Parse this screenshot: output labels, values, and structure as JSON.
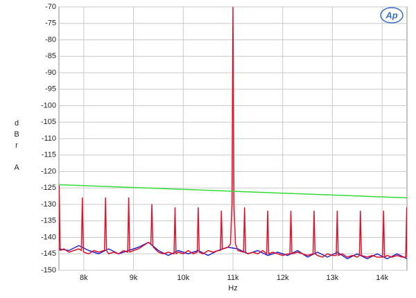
{
  "chart_data": {
    "type": "line",
    "logo": "Ap",
    "ylabel_lines": [
      "d",
      "B",
      "r",
      "A"
    ],
    "xlabel": "Hz",
    "xlim": [
      7500,
      14500
    ],
    "xticks": [
      {
        "value": 8000,
        "label": "8k"
      },
      {
        "value": 9000,
        "label": "9k"
      },
      {
        "value": 10000,
        "label": "10k"
      },
      {
        "value": 11000,
        "label": "11k"
      },
      {
        "value": 12000,
        "label": "12k"
      },
      {
        "value": 13000,
        "label": "13k"
      },
      {
        "value": 14000,
        "label": "14k"
      }
    ],
    "ylim": [
      -150,
      -70
    ],
    "yticks": [
      -70,
      -75,
      -80,
      -85,
      -90,
      -95,
      -100,
      -105,
      -110,
      -115,
      -120,
      -125,
      -130,
      -135,
      -140,
      -145,
      -150
    ],
    "grid": true,
    "series": [
      {
        "name": "Blue trace",
        "color": "#2222cc",
        "x": [
          7500,
          7700,
          7900,
          8100,
          8300,
          8500,
          8700,
          8900,
          9100,
          9300,
          9500,
          9700,
          9900,
          10100,
          10300,
          10500,
          10700,
          10900,
          11100,
          11300,
          11500,
          11700,
          11900,
          12100,
          12300,
          12500,
          12700,
          12900,
          13100,
          13300,
          13500,
          13700,
          13900,
          14100,
          14300,
          14500
        ],
        "values": [
          -143.5,
          -144,
          -142.5,
          -144,
          -145,
          -143.5,
          -145,
          -144,
          -143,
          -141.5,
          -144,
          -145.5,
          -144,
          -145,
          -144,
          -145.5,
          -144,
          -143,
          -143.5,
          -145,
          -144,
          -145.5,
          -144.5,
          -145.5,
          -144,
          -146,
          -144.5,
          -146,
          -144.5,
          -146.5,
          -145,
          -146.5,
          -145,
          -146.5,
          -145,
          -146.5
        ]
      },
      {
        "name": "Red trace",
        "color": "#e0102a",
        "x": [
          7500,
          7505,
          7525,
          7600,
          7700,
          7800,
          7900,
          7951,
          7971,
          7991,
          8000,
          8100,
          8200,
          8300,
          8400,
          8417,
          8437,
          8457,
          8500,
          8600,
          8700,
          8800,
          8883,
          8903,
          8923,
          9000,
          9100,
          9200,
          9300,
          9349,
          9369,
          9389,
          9400,
          9500,
          9600,
          9700,
          9800,
          9815,
          9835,
          9855,
          9900,
          10000,
          10100,
          10200,
          10281,
          10301,
          10321,
          10400,
          10500,
          10600,
          10700,
          10747,
          10767,
          10787,
          10900,
          10950,
          10980,
          11000,
          11020,
          11050,
          11100,
          11213,
          11233,
          11253,
          11300,
          11400,
          11500,
          11600,
          11679,
          11699,
          11719,
          11800,
          11900,
          12000,
          12100,
          12145,
          12165,
          12185,
          12300,
          12400,
          12500,
          12611,
          12631,
          12651,
          12700,
          12800,
          12900,
          13000,
          13077,
          13097,
          13117,
          13200,
          13300,
          13400,
          13500,
          13543,
          13563,
          13583,
          13700,
          13800,
          13900,
          14009,
          14029,
          14049,
          14100,
          14200,
          14300,
          14400,
          14475,
          14495,
          14500
        ],
        "values": [
          -144,
          -124,
          -144,
          -143.5,
          -144.5,
          -144,
          -143.5,
          -144,
          -128,
          -144,
          -144.5,
          -145,
          -144,
          -144.5,
          -144,
          -144,
          -128,
          -144,
          -145,
          -144.5,
          -145,
          -144,
          -144.5,
          -128,
          -144.5,
          -144,
          -143.5,
          -142.5,
          -141.5,
          -142,
          -130,
          -142.5,
          -143,
          -144.5,
          -145,
          -144.5,
          -145,
          -145,
          -131,
          -145,
          -144.5,
          -145,
          -144,
          -145,
          -144.5,
          -131,
          -144.5,
          -145,
          -144,
          -144.5,
          -144,
          -144,
          -132,
          -143.5,
          -143,
          -142,
          -130,
          -70,
          -130,
          -142,
          -144,
          -144.5,
          -131,
          -144.5,
          -145,
          -144.5,
          -145,
          -144,
          -145,
          -132,
          -145,
          -144.5,
          -145,
          -145.5,
          -145,
          -145,
          -132,
          -145,
          -144.5,
          -145,
          -145.5,
          -145,
          -132,
          -145,
          -145.5,
          -146,
          -145,
          -145.5,
          -145.5,
          -132,
          -145.5,
          -145,
          -146,
          -145.5,
          -146,
          -145.5,
          -132,
          -145.5,
          -146,
          -145.5,
          -146,
          -146,
          -132,
          -146,
          -145.5,
          -146,
          -145.5,
          -146,
          -146,
          -131,
          -146
        ]
      },
      {
        "name": "Green trace",
        "color": "#33dd33",
        "x": [
          7500,
          14500
        ],
        "values": [
          -124,
          -128
        ]
      }
    ]
  }
}
